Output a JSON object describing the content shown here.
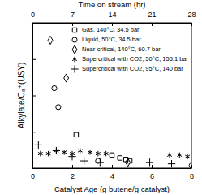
{
  "chart_data": {
    "type": "scatter",
    "x_label": "Catalyst Age (g butene/g catalyst)",
    "x2_label": "Time on stream (hr)",
    "y_label": "Alkylate/C₈⁺(USY)",
    "xlim": [
      0,
      8
    ],
    "xticks": [
      0,
      2,
      4,
      6,
      8
    ],
    "x2lim": [
      0,
      28
    ],
    "x2ticks": [
      0,
      7,
      14,
      21,
      28
    ],
    "ylim": [
      0,
      1
    ],
    "yticks": [
      0,
      0.25,
      0.5,
      0.75,
      1
    ],
    "tick_labels": "x",
    "legend": "upper right",
    "series": [
      {
        "name": "Gas, 140°C, 34.5 bar",
        "marker": "square",
        "color": "#000000",
        "x": [
          2.2,
          4.0,
          4.4,
          4.7,
          4.9
        ],
        "values": [
          0.23,
          0.09,
          0.07,
          0.06,
          0.05
        ]
      },
      {
        "name": "Liquid, 50°C, 34.5 bar",
        "marker": "circle",
        "color": "#000000",
        "x": [
          1.1,
          1.3,
          3.3
        ],
        "values": [
          0.55,
          0.42,
          0.05
        ]
      },
      {
        "name": "Near-critical, 140°C, 60.7 bar",
        "marker": "diamond",
        "color": "#000000",
        "x": [
          0.9,
          1.7,
          4.8,
          8.0
        ],
        "values": [
          0.88,
          0.62,
          0.04,
          0.02
        ]
      },
      {
        "name": "Supercritical with CO2, 50°C, 155.1 bar",
        "marker": "asterisk",
        "color": "#000000",
        "x": [
          0.4,
          0.8,
          1.2,
          1.6,
          2.0,
          2.4,
          2.9,
          3.3,
          3.7,
          6.9,
          7.4,
          7.8
        ],
        "values": [
          0.1,
          0.1,
          0.12,
          0.11,
          0.1,
          0.12,
          0.11,
          0.1,
          0.1,
          0.09,
          0.09,
          0.08
        ]
      },
      {
        "name": "Supercritical with CO2, 95°C, 140 bar",
        "marker": "plus",
        "color": "#000000",
        "x": [
          0.3,
          1.2,
          2.0,
          2.6,
          3.4,
          5.9,
          7.0
        ],
        "values": [
          0.16,
          0.12,
          0.08,
          0.05,
          0.04,
          0.04,
          0.03
        ]
      }
    ]
  }
}
